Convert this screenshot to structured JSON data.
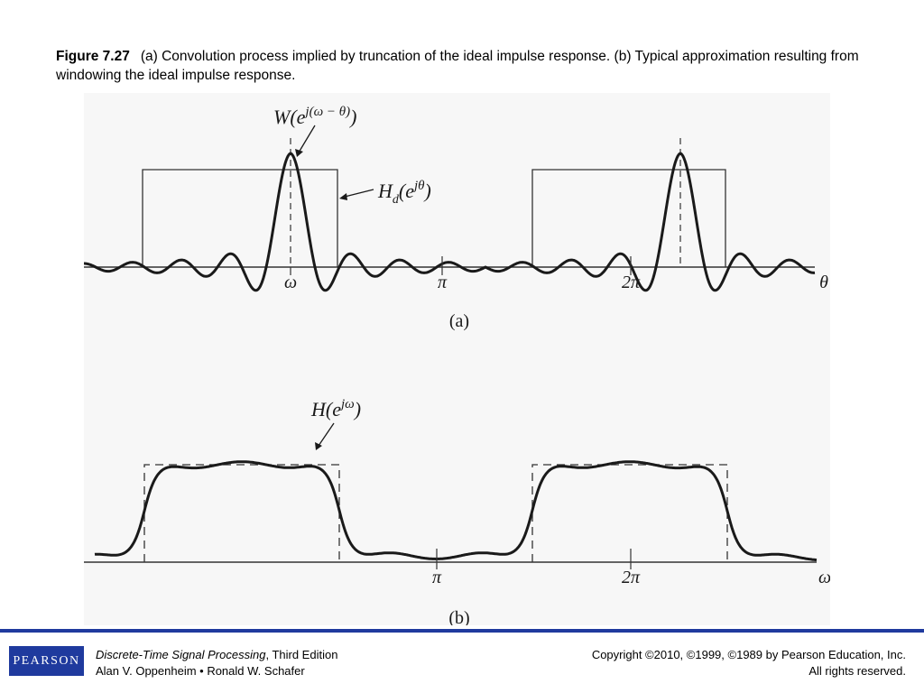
{
  "caption": {
    "figure_label": "Figure 7.27",
    "text": "(a) Convolution process implied by truncation of the ideal impulse response. (b) Typical approximation resulting from windowing the ideal impulse response."
  },
  "panel_a": {
    "label": "(a)",
    "w_label": "W(e",
    "w_exp": "j(ω − θ)",
    "w_close": ")",
    "hd_label": "H",
    "hd_sub": "d",
    "hd_mid": "(e",
    "hd_exp": "jθ",
    "hd_close": ")",
    "tick_omega": "ω",
    "tick_pi": "π",
    "tick_2pi": "2π",
    "axis_label": "θ"
  },
  "panel_b": {
    "label": "(b)",
    "h_label": "H(e",
    "h_exp": "jω",
    "h_close": ")",
    "tick_pi": "π",
    "tick_2pi": "2π",
    "axis_label": "ω"
  },
  "footer": {
    "logo": "PEARSON",
    "book_title": "Discrete-Time Signal Processing",
    "book_edition": ", Third Edition",
    "authors": "Alan V. Oppenheim • Ronald W. Schafer",
    "copyright": "Copyright ©2010, ©1999, ©1989 by Pearson Education, Inc.",
    "rights": "All rights reserved."
  },
  "colors": {
    "brand": "#1f3a9e",
    "curve": "#1a1a1a"
  }
}
